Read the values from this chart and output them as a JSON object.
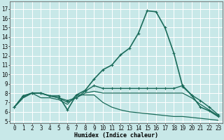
{
  "title": "",
  "xlabel": "Humidex (Indice chaleur)",
  "bg_color": "#c8e8e8",
  "grid_color": "#ffffff",
  "line_color": "#1a6b5a",
  "xlim": [
    -0.5,
    23.5
  ],
  "ylim": [
    4.8,
    17.8
  ],
  "yticks": [
    5,
    6,
    7,
    8,
    9,
    10,
    11,
    12,
    13,
    14,
    15,
    16,
    17
  ],
  "xticks": [
    0,
    1,
    2,
    3,
    4,
    5,
    6,
    7,
    8,
    9,
    10,
    11,
    12,
    13,
    14,
    15,
    16,
    17,
    18,
    19,
    20,
    21,
    22,
    23
  ],
  "series": [
    {
      "x": [
        0,
        1,
        2,
        3,
        4,
        5,
        6,
        7,
        8,
        9,
        10,
        11,
        12,
        13,
        14,
        15,
        16,
        17,
        18,
        19,
        20,
        21,
        22,
        23
      ],
      "y": [
        6.5,
        7.7,
        8.0,
        8.0,
        7.7,
        7.7,
        6.2,
        7.8,
        8.3,
        9.5,
        10.5,
        11.0,
        12.1,
        12.8,
        14.4,
        16.8,
        16.7,
        15.0,
        12.3,
        8.7,
        7.8,
        6.5,
        6.1,
        5.5
      ],
      "marker": "+",
      "lw": 1.2
    },
    {
      "x": [
        0,
        1,
        2,
        3,
        4,
        5,
        6,
        7,
        8,
        9,
        10,
        11,
        12,
        13,
        14,
        15,
        16,
        17,
        18,
        19,
        20,
        21,
        22,
        23
      ],
      "y": [
        6.5,
        7.7,
        8.0,
        8.0,
        7.7,
        7.5,
        7.2,
        7.5,
        8.2,
        8.8,
        8.5,
        8.5,
        8.5,
        8.5,
        8.5,
        8.5,
        8.5,
        8.5,
        8.5,
        8.8,
        7.8,
        7.2,
        6.5,
        5.7
      ],
      "marker": "+",
      "lw": 1.0
    },
    {
      "x": [
        0,
        1,
        2,
        3,
        4,
        5,
        6,
        7,
        8,
        9,
        10,
        11,
        12,
        13,
        14,
        15,
        16,
        17,
        18,
        19,
        20,
        21,
        22,
        23
      ],
      "y": [
        6.5,
        7.5,
        8.0,
        8.0,
        7.7,
        7.5,
        7.0,
        7.5,
        8.0,
        8.2,
        8.0,
        8.0,
        8.0,
        8.0,
        8.0,
        8.0,
        8.0,
        8.0,
        8.0,
        8.0,
        7.5,
        6.8,
        6.2,
        5.6
      ],
      "marker": null,
      "lw": 0.9
    },
    {
      "x": [
        0,
        1,
        2,
        3,
        4,
        5,
        6,
        7,
        8,
        9,
        10,
        11,
        12,
        13,
        14,
        15,
        16,
        17,
        18,
        19,
        20,
        21,
        22,
        23
      ],
      "y": [
        6.5,
        7.5,
        8.0,
        7.5,
        7.5,
        7.3,
        6.8,
        7.8,
        7.8,
        7.8,
        7.0,
        6.5,
        6.2,
        6.0,
        5.9,
        5.8,
        5.7,
        5.6,
        5.5,
        5.5,
        5.4,
        5.3,
        5.2,
        5.1
      ],
      "marker": null,
      "lw": 0.9
    }
  ],
  "tick_fontsize": 5.5,
  "xlabel_fontsize": 6.0
}
